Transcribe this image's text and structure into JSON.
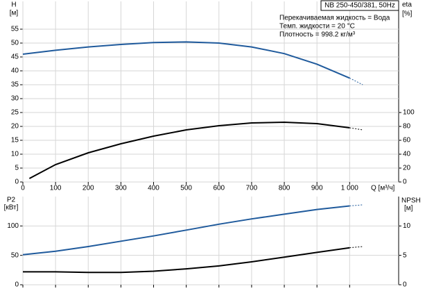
{
  "chart_data": [
    {
      "type": "line",
      "info_title": "NB 250-450/381, 50Hz",
      "annotations": [
        "Перекачиваемая жидкость = Вода",
        "Темп. жидкости = 20 °C",
        "Плотность = 998.2 кг/м³"
      ],
      "ylabel": [
        "H",
        "[м]"
      ],
      "y2label": [
        "eta",
        "[%]"
      ],
      "xlabel": "Q [м³/ч]",
      "xlim": [
        0,
        1150
      ],
      "xticks": [
        0,
        100,
        200,
        300,
        400,
        500,
        600,
        700,
        800,
        900,
        {
          "value": 1000,
          "label": "1 000"
        }
      ],
      "ylim": [
        0,
        65
      ],
      "yticks": [
        0,
        5,
        10,
        15,
        20,
        25,
        30,
        35,
        40,
        45,
        50,
        55
      ],
      "y2lim": [
        0,
        260
      ],
      "y2ticks": [
        0,
        20,
        40,
        60,
        80,
        100
      ],
      "grid": true,
      "show_xtick_labels": true,
      "series": [
        {
          "color": "#1f5a9c",
          "style": "solid",
          "axis": "y",
          "x": [
            0,
            100,
            200,
            300,
            400,
            500,
            600,
            700,
            800,
            900,
            1000
          ],
          "values": [
            46,
            47.4,
            48.6,
            49.5,
            50.2,
            50.4,
            50,
            48.6,
            46.2,
            42.4,
            37.4
          ]
        },
        {
          "color": "#1f5a9c",
          "style": "dashed",
          "axis": "y",
          "x": [
            1000,
            1040
          ],
          "values": [
            37.4,
            35
          ]
        },
        {
          "color": "#000000",
          "style": "solid",
          "axis": "y2",
          "x": [
            20,
            100,
            200,
            300,
            400,
            500,
            600,
            700,
            800,
            900,
            1000
          ],
          "values": [
            5,
            25,
            42,
            55,
            66,
            75,
            81,
            85,
            86,
            84,
            78
          ]
        },
        {
          "color": "#000000",
          "style": "dashed",
          "axis": "y2",
          "x": [
            1000,
            1040
          ],
          "values": [
            78,
            75
          ]
        }
      ]
    },
    {
      "type": "line",
      "ylabel": [
        "P2",
        "[кВт]"
      ],
      "y2label": [
        "NPSH",
        "[м]"
      ],
      "xlim": [
        0,
        1150
      ],
      "xticks": [
        0,
        100,
        200,
        300,
        400,
        500,
        600,
        700,
        800,
        900,
        1000
      ],
      "ylim": [
        0,
        150
      ],
      "yticks": [
        0,
        50,
        100
      ],
      "y2lim": [
        0,
        15
      ],
      "y2ticks": [
        0,
        5,
        10
      ],
      "grid": true,
      "show_xtick_labels": false,
      "series": [
        {
          "color": "#1f5a9c",
          "style": "solid",
          "axis": "y",
          "x": [
            0,
            100,
            200,
            300,
            400,
            500,
            600,
            700,
            800,
            900,
            1000
          ],
          "values": [
            51,
            57,
            65,
            74,
            83,
            93,
            103,
            112,
            120,
            128,
            134
          ]
        },
        {
          "color": "#1f5a9c",
          "style": "dashed",
          "axis": "y",
          "x": [
            1000,
            1040
          ],
          "values": [
            134,
            136
          ]
        },
        {
          "color": "#000000",
          "style": "solid",
          "axis": "y2",
          "x": [
            0,
            100,
            200,
            300,
            400,
            500,
            600,
            700,
            800,
            900,
            1000
          ],
          "values": [
            2.2,
            2.2,
            2.1,
            2.1,
            2.3,
            2.7,
            3.2,
            3.9,
            4.7,
            5.5,
            6.3
          ]
        },
        {
          "color": "#000000",
          "style": "dashed",
          "axis": "y2",
          "x": [
            1000,
            1040
          ],
          "values": [
            6.3,
            6.5
          ]
        }
      ]
    }
  ]
}
